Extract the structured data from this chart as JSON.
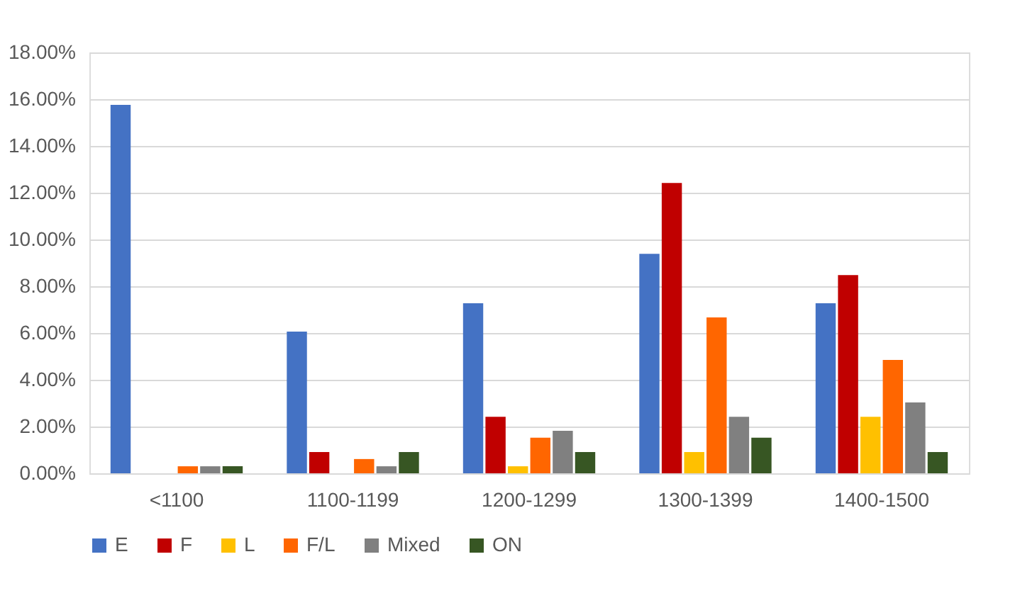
{
  "chart_data": {
    "type": "bar",
    "categories": [
      "<1100",
      "1100-1199",
      "1200-1299",
      "1300-1399",
      "1400-1500"
    ],
    "series": [
      {
        "name": "E",
        "color": "#4472c4",
        "values": [
          15.76,
          6.06,
          7.27,
          9.39,
          7.27
        ]
      },
      {
        "name": "F",
        "color": "#c00000",
        "values": [
          0,
          0.91,
          2.42,
          12.42,
          8.48
        ]
      },
      {
        "name": "L",
        "color": "#ffc000",
        "values": [
          0,
          0,
          0.3,
          0.91,
          2.42
        ]
      },
      {
        "name": "F/L",
        "color": "#ff6600",
        "values": [
          0.3,
          0.61,
          1.52,
          6.67,
          4.85
        ]
      },
      {
        "name": "Mixed",
        "color": "#808080",
        "values": [
          0.3,
          0.3,
          1.82,
          2.42,
          3.03
        ]
      },
      {
        "name": "ON",
        "color": "#375623",
        "values": [
          0.3,
          0.91,
          0.91,
          1.52,
          0.91
        ]
      }
    ],
    "ylim": [
      0,
      18
    ],
    "yticks": [
      {
        "value": 0,
        "label": "0.00%"
      },
      {
        "value": 2,
        "label": "2.00%"
      },
      {
        "value": 4,
        "label": "4.00%"
      },
      {
        "value": 6,
        "label": "6.00%"
      },
      {
        "value": 8,
        "label": "8.00%"
      },
      {
        "value": 10,
        "label": "10.00%"
      },
      {
        "value": 12,
        "label": "12.00%"
      },
      {
        "value": 14,
        "label": "14.00%"
      },
      {
        "value": 16,
        "label": "16.00%"
      },
      {
        "value": 18,
        "label": "18.00%"
      }
    ],
    "grid": "y",
    "legend": "bottom"
  }
}
